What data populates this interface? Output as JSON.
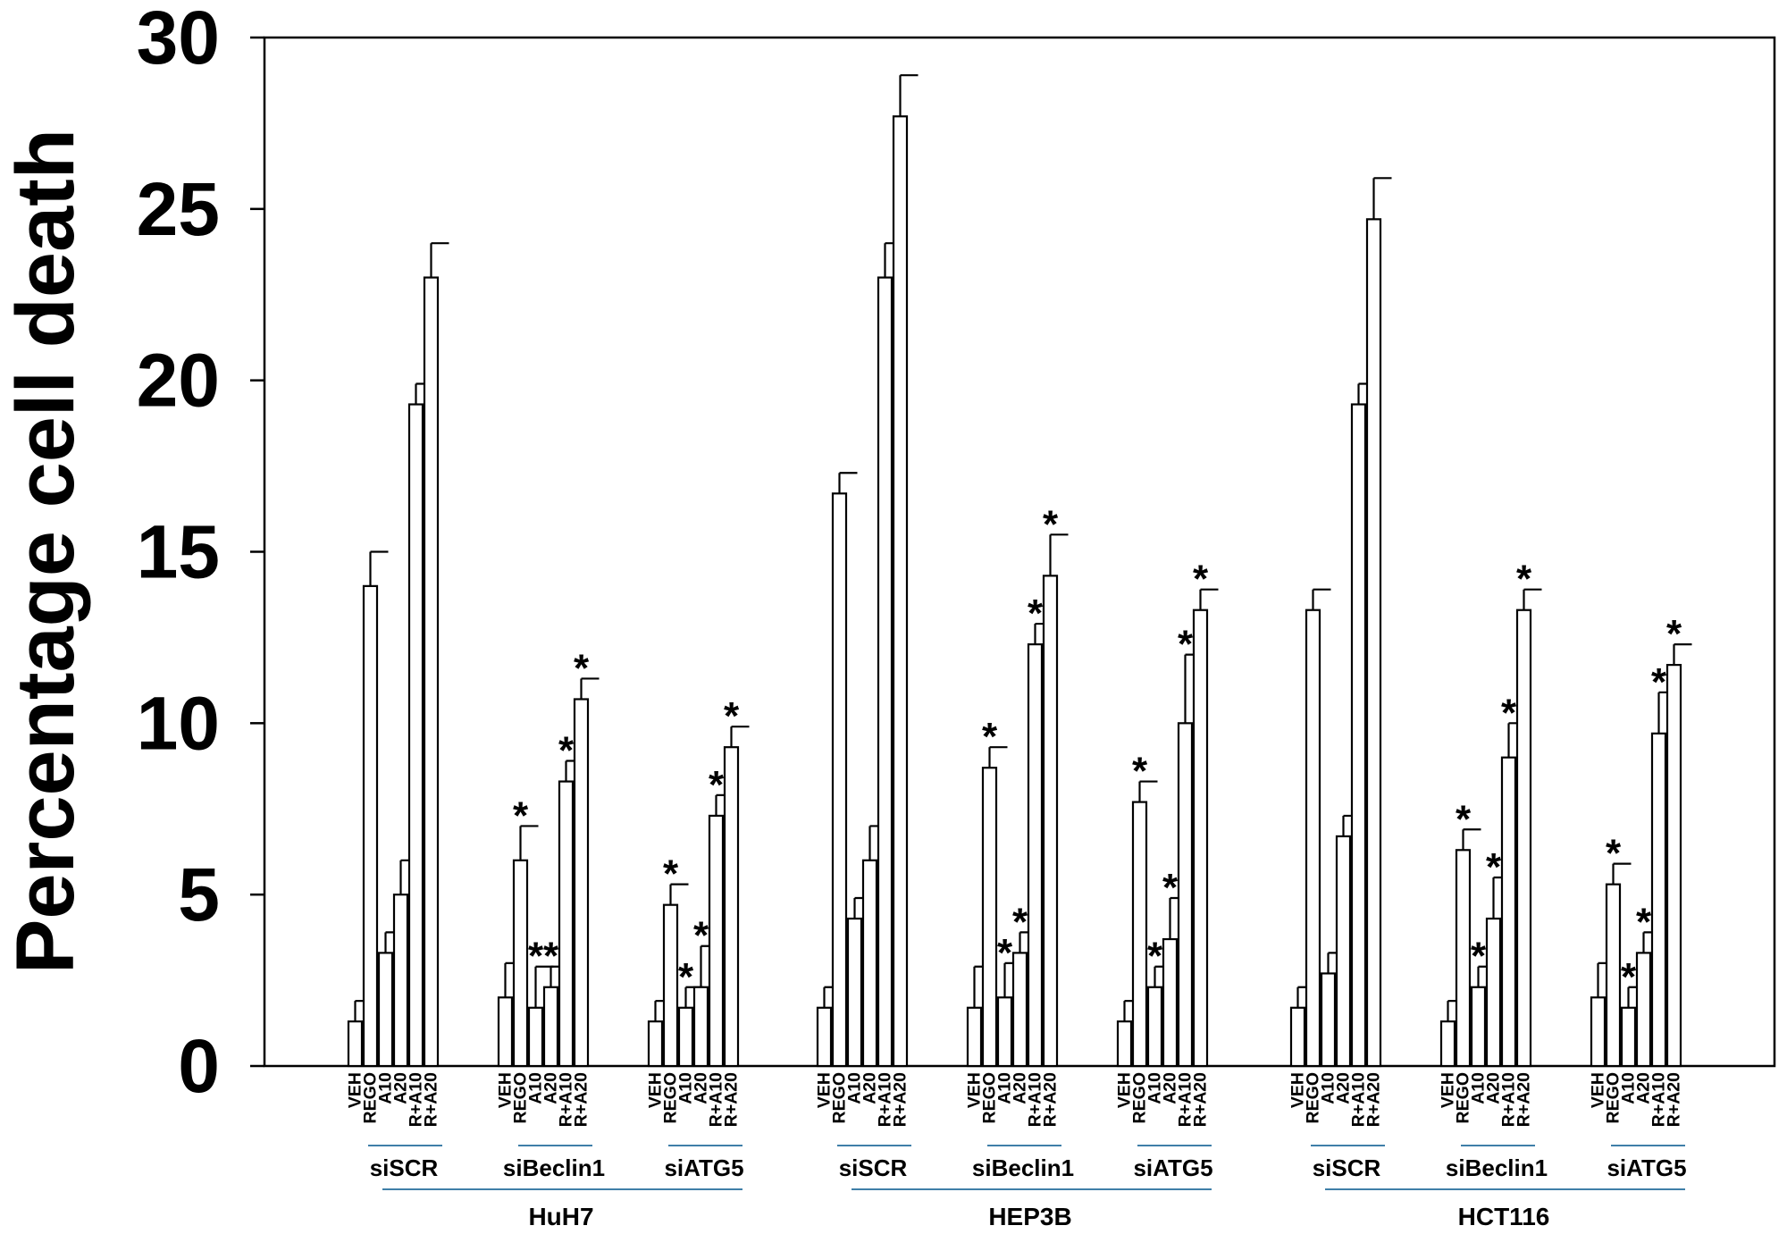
{
  "chart_data": {
    "type": "bar",
    "ylabel": "Percentage cell death",
    "ylim": [
      0,
      30
    ],
    "yticks": [
      0,
      5,
      10,
      15,
      20,
      25,
      30
    ],
    "grid": false,
    "error_bars": true,
    "bar_labels": [
      "VEH",
      "REGO",
      "A10",
      "A20",
      "R+A10",
      "R+A20"
    ],
    "cell_lines": [
      {
        "name": "HuH7",
        "groups": [
          {
            "name": "siSCR",
            "values": [
              1.3,
              14.0,
              3.3,
              5.0,
              19.3,
              23.0
            ],
            "errors": [
              0.6,
              1.0,
              0.6,
              1.0,
              0.6,
              1.0
            ],
            "significant": [
              false,
              false,
              false,
              false,
              false,
              false
            ]
          },
          {
            "name": "siBeclin1",
            "values": [
              2.0,
              6.0,
              1.7,
              2.3,
              8.3,
              10.7
            ],
            "errors": [
              1.0,
              1.0,
              1.2,
              0.6,
              0.6,
              0.6
            ],
            "significant": [
              false,
              true,
              true,
              true,
              true,
              true
            ]
          },
          {
            "name": "siATG5",
            "values": [
              1.3,
              4.7,
              1.7,
              2.3,
              7.3,
              9.3
            ],
            "errors": [
              0.6,
              0.6,
              0.6,
              1.2,
              0.6,
              0.6
            ],
            "significant": [
              false,
              true,
              true,
              true,
              true,
              true
            ]
          }
        ]
      },
      {
        "name": "HEP3B",
        "groups": [
          {
            "name": "siSCR",
            "values": [
              1.7,
              16.7,
              4.3,
              6.0,
              23.0,
              27.7
            ],
            "errors": [
              0.6,
              0.6,
              0.6,
              1.0,
              1.0,
              1.2
            ],
            "significant": [
              false,
              false,
              false,
              false,
              false,
              false
            ]
          },
          {
            "name": "siBeclin1",
            "values": [
              1.7,
              8.7,
              2.0,
              3.3,
              12.3,
              14.3
            ],
            "errors": [
              1.2,
              0.6,
              1.0,
              0.6,
              0.6,
              1.2
            ],
            "significant": [
              false,
              true,
              true,
              true,
              true,
              true
            ]
          },
          {
            "name": "siATG5",
            "values": [
              1.3,
              7.7,
              2.3,
              3.7,
              10.0,
              13.3
            ],
            "errors": [
              0.6,
              0.6,
              0.6,
              1.2,
              2.0,
              0.6
            ],
            "significant": [
              false,
              true,
              true,
              true,
              true,
              true
            ]
          }
        ]
      },
      {
        "name": "HCT116",
        "groups": [
          {
            "name": "siSCR",
            "values": [
              1.7,
              13.3,
              2.7,
              6.7,
              19.3,
              24.7
            ],
            "errors": [
              0.6,
              0.6,
              0.6,
              0.6,
              0.6,
              1.2
            ],
            "significant": [
              false,
              false,
              false,
              false,
              false,
              false
            ]
          },
          {
            "name": "siBeclin1",
            "values": [
              1.3,
              6.3,
              2.3,
              4.3,
              9.0,
              13.3
            ],
            "errors": [
              0.6,
              0.6,
              0.6,
              1.2,
              1.0,
              0.6
            ],
            "significant": [
              false,
              true,
              true,
              true,
              true,
              true
            ]
          },
          {
            "name": "siATG5",
            "values": [
              2.0,
              5.3,
              1.7,
              3.3,
              9.7,
              11.7
            ],
            "errors": [
              1.0,
              0.6,
              0.6,
              0.6,
              1.2,
              0.6
            ],
            "significant": [
              false,
              true,
              true,
              true,
              true,
              true
            ]
          }
        ]
      }
    ],
    "significance_marker": "*",
    "colors": {
      "bar_fill": "#ffffff",
      "bar_stroke": "#000000",
      "group_underline": "#3f7fa8"
    }
  }
}
